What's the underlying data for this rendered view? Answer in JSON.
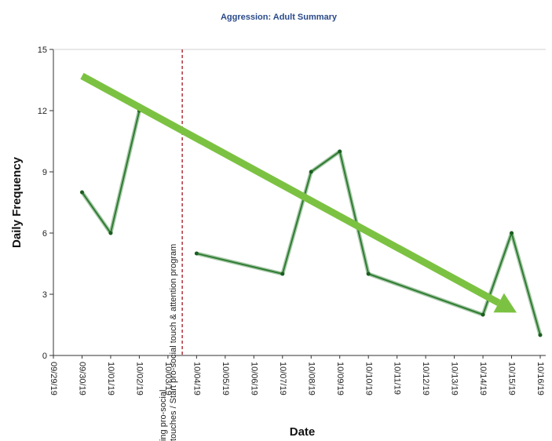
{
  "chart_data": {
    "type": "line",
    "title": "Aggression: Adult Summary",
    "xlabel": "Date",
    "ylabel": "Daily Frequency",
    "ylim": [
      0,
      15
    ],
    "yticks": [
      0,
      3,
      6,
      9,
      12,
      15
    ],
    "categories": [
      "09/29/19",
      "09/30/19",
      "10/01/19",
      "10/02/19",
      "10/03/19",
      "10/04/19",
      "10/05/19",
      "10/06/19",
      "10/07/19",
      "10/08/19",
      "10/09/19",
      "10/10/19",
      "10/11/19",
      "10/12/19",
      "10/13/19",
      "10/14/19",
      "10/15/19",
      "10/16/19"
    ],
    "series": [
      {
        "values": [
          null,
          8,
          6,
          12,
          null,
          null,
          null,
          null,
          null,
          null,
          null,
          null,
          null,
          null,
          null,
          null,
          null,
          null
        ]
      },
      {
        "values": [
          null,
          null,
          null,
          null,
          null,
          5,
          null,
          null,
          4,
          9,
          10,
          4,
          null,
          null,
          null,
          2,
          6,
          1
        ]
      }
    ],
    "line_color": "#2e7d32",
    "phase_line": {
      "after_category": "10/03/19",
      "label_lines": [
        "ing pro-social",
        "touches / Start pro-social touch & attention program"
      ],
      "color": "#b0303a"
    },
    "trend_arrow": {
      "from": {
        "category": "09/30/19",
        "y": 13.7
      },
      "to": {
        "category": "10/16/19",
        "y": 2.1
      },
      "color": "#7cc242"
    },
    "grid": false
  }
}
